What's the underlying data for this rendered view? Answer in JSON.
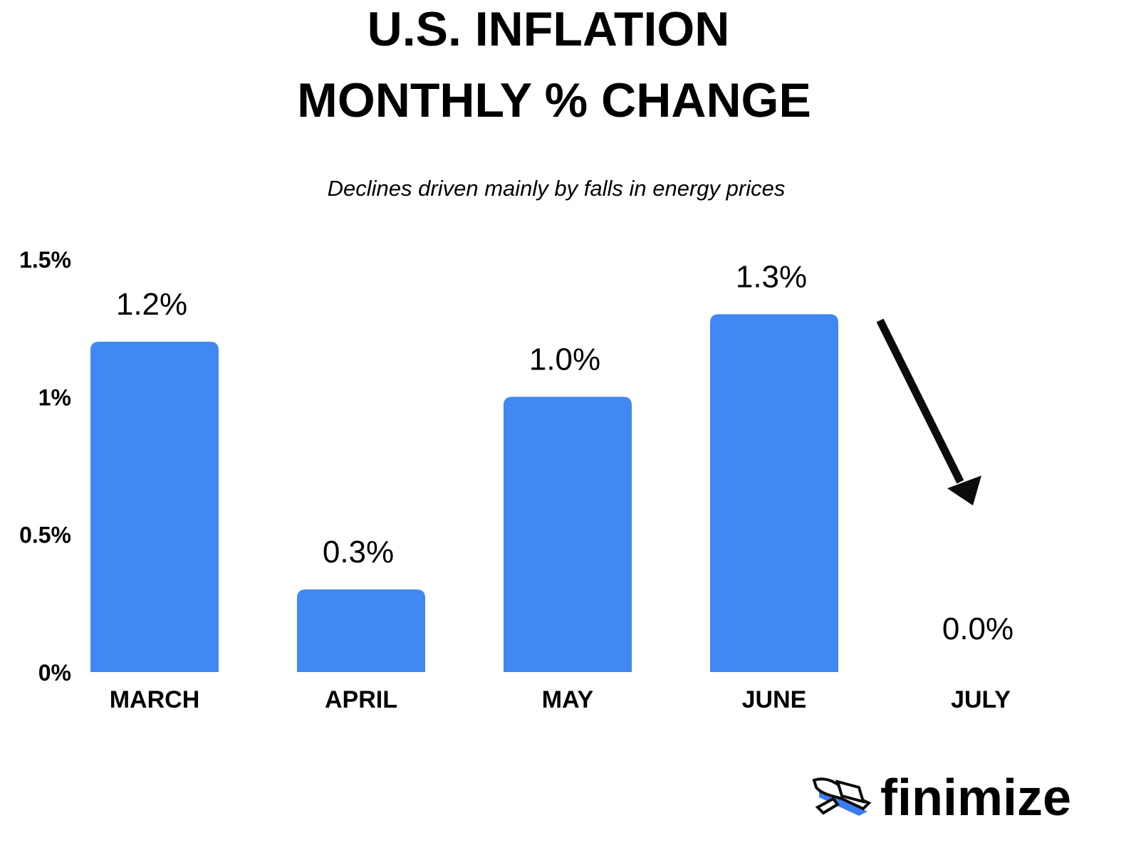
{
  "chart_data": {
    "type": "bar",
    "title_lines": [
      "U.S. INFLATION",
      "MONTHLY % CHANGE"
    ],
    "subtitle": "Declines driven mainly by falls in energy prices",
    "categories": [
      "MARCH",
      "APRIL",
      "MAY",
      "JUNE",
      "JULY"
    ],
    "values": [
      1.2,
      0.3,
      1.0,
      1.3,
      0.0
    ],
    "data_labels": [
      "1.2%",
      "0.3%",
      "1.0%",
      "1.3%",
      "0.0%"
    ],
    "yticks": [
      {
        "value": 0,
        "label": "0%"
      },
      {
        "value": 0.5,
        "label": "0.5%"
      },
      {
        "value": 1,
        "label": "1%"
      },
      {
        "value": 1.5,
        "label": "1.5%"
      }
    ],
    "ylim": [
      0,
      1.5
    ],
    "grid": false,
    "legend": "none",
    "annotation": "downward-arrow-toward-july",
    "colors": {
      "bar": "#4188F5",
      "text": "#0b0b0b",
      "logo_accent": "#3B7CF2"
    }
  },
  "brand": {
    "name": "finimize",
    "logo_icon": "winged-envelope-icon"
  }
}
